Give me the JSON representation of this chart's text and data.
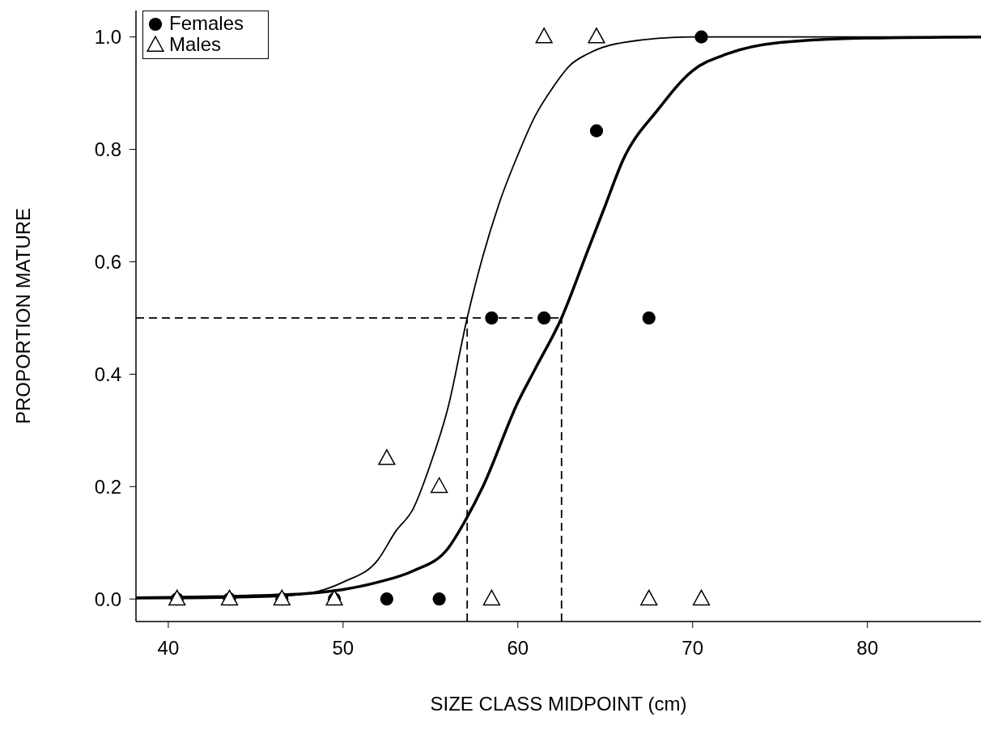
{
  "chart_data": {
    "type": "scatter",
    "xlabel": "SIZE CLASS MIDPOINT (cm)",
    "ylabel": "PROPORTION MATURE",
    "xlim": [
      38.15,
      86.5
    ],
    "xticks": [
      40,
      50,
      60,
      70,
      80
    ],
    "ylim": [
      -0.04,
      1.047
    ],
    "yticks": [
      {
        "value": 0,
        "label": "0.0"
      },
      {
        "value": 0.2,
        "label": "0.2"
      },
      {
        "value": 0.4,
        "label": "0.4"
      },
      {
        "value": 0.6,
        "label": "0.6"
      },
      {
        "value": 0.8,
        "label": "0.8"
      },
      {
        "value": 1,
        "label": "1.0"
      }
    ],
    "legend": "top left",
    "grid": false,
    "series": [
      {
        "name": "Females",
        "marker": "circle",
        "color": "#000000",
        "x": [
          40.5,
          43.5,
          46.5,
          49.5,
          52.5,
          55.5,
          58.5,
          61.5,
          64.5,
          67.5,
          70.5
        ],
        "values": [
          0,
          0,
          0,
          0,
          0,
          0,
          0.5,
          0.5,
          0.833,
          0.5,
          1.0
        ]
      },
      {
        "name": "Males",
        "marker": "triangle",
        "color": "#000000",
        "x": [
          40.5,
          43.5,
          46.5,
          49.5,
          52.5,
          55.5,
          58.5,
          61.5,
          64.5,
          67.5,
          70.5
        ],
        "values": [
          0,
          0,
          0,
          0,
          0.25,
          0.2,
          0,
          1.0,
          1.0,
          0,
          0
        ]
      },
      {
        "type": "line",
        "color": "#000000",
        "line_style": "solid",
        "x": [
          38.15,
          40,
          44,
          48,
          50,
          52,
          54,
          56,
          57,
          58,
          60,
          61,
          62.5,
          64,
          65,
          66,
          68,
          70,
          72,
          75,
          80,
          86.5
        ],
        "values": [
          0.002,
          0.003,
          0.005,
          0.01,
          0.017,
          0.03,
          0.05,
          0.09,
          0.14,
          0.2,
          0.35,
          0.41,
          0.5,
          0.62,
          0.7,
          0.78,
          0.87,
          0.94,
          0.97,
          0.99,
          0.998,
          1.0
        ]
      },
      {
        "type": "line",
        "color": "#000000",
        "line_style": "solid",
        "x": [
          38.15,
          40,
          45,
          48,
          50,
          52,
          53,
          54,
          55,
          56,
          57.1,
          58,
          59,
          60,
          61,
          62,
          63,
          64,
          66,
          70,
          86.5
        ],
        "values": [
          0.001,
          0.001,
          0.003,
          0.01,
          0.03,
          0.07,
          0.12,
          0.16,
          0.24,
          0.34,
          0.5,
          0.61,
          0.71,
          0.79,
          0.86,
          0.91,
          0.95,
          0.97,
          0.99,
          1.0,
          1.0
        ]
      },
      {
        "type": "line",
        "color": "#000000",
        "line_style": "dashed",
        "x": [
          38.15,
          62.5
        ],
        "values": [
          0.5,
          0.5
        ]
      },
      {
        "type": "line",
        "color": "#000000",
        "line_style": "dashed",
        "x": [
          57.1,
          57.1
        ],
        "values": [
          -0.04,
          0.5
        ]
      },
      {
        "type": "line",
        "color": "#000000",
        "line_style": "dashed",
        "x": [
          62.5,
          62.5
        ],
        "values": [
          -0.04,
          0.5
        ]
      }
    ]
  }
}
